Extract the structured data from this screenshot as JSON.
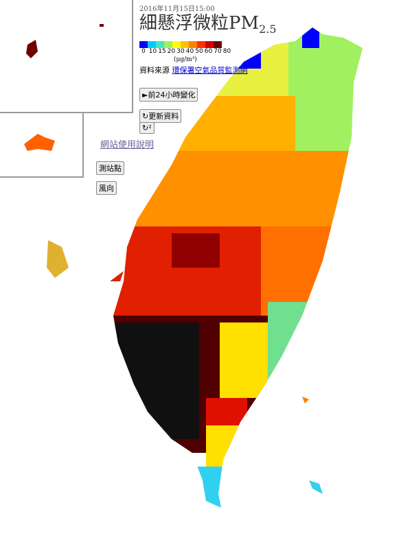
{
  "header": {
    "date": "2016年11月15日15:00",
    "title": "細懸浮微粒PM",
    "title_sub": "2.5"
  },
  "legend": {
    "ticks": [
      0,
      10,
      15,
      20,
      30,
      40,
      50,
      60,
      70,
      80
    ],
    "colors": [
      "#0000ff",
      "#00c8ff",
      "#40e8c0",
      "#a0f060",
      "#ffff00",
      "#ffc000",
      "#ff8000",
      "#ff3000",
      "#d00000",
      "#700000"
    ],
    "unit": "(μg/m³)"
  },
  "source": {
    "label": "資料來源",
    "link": "環保署空氣品質監測網"
  },
  "buttons": {
    "history": "►前24小時變化",
    "refresh": "↻更新資料",
    "reload": "↻²",
    "stations": "測站點",
    "wind": "風向"
  },
  "help_link": "網站使用說明"
}
